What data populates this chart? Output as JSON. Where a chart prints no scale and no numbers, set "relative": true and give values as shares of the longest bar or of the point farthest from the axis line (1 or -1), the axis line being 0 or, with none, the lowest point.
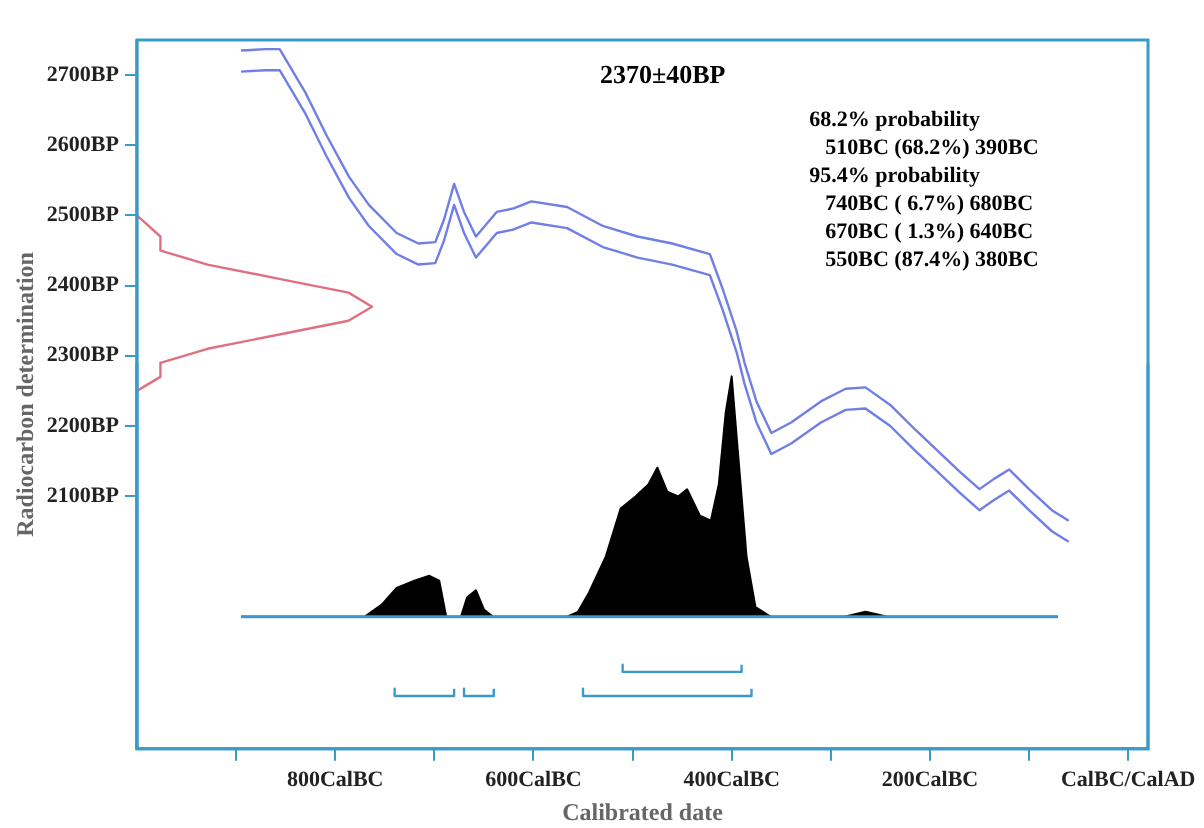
{
  "chart_data": [
    {
      "type": "line",
      "title": "2370±40BP",
      "xlabel": "Calibrated date",
      "ylabel": "Radiocarbon determination",
      "xlim": [
        -1000,
        20
      ],
      "xticks": [
        {
          "value": -900,
          "label": null
        },
        {
          "value": -800,
          "label": "800CalBC"
        },
        {
          "value": -700,
          "label": null
        },
        {
          "value": -600,
          "label": "600CalBC"
        },
        {
          "value": -500,
          "label": null
        },
        {
          "value": -400,
          "label": "400CalBC"
        },
        {
          "value": -300,
          "label": null
        },
        {
          "value": -200,
          "label": "200CalBC"
        },
        {
          "value": -100,
          "label": null
        },
        {
          "value": 0,
          "label": "CalBC/CalAD"
        }
      ],
      "ylim": [
        1740,
        2750
      ],
      "yticks": [
        {
          "value": 2100,
          "label": "2100BP"
        },
        {
          "value": 2200,
          "label": "2200BP"
        },
        {
          "value": 2300,
          "label": "2300BP"
        },
        {
          "value": 2400,
          "label": "2400BP"
        },
        {
          "value": 2500,
          "label": "2500BP"
        },
        {
          "value": 2600,
          "label": "2600BP"
        },
        {
          "value": 2700,
          "label": "2700BP"
        }
      ],
      "grid": false,
      "legend": false,
      "marker": "none",
      "series": [
        {
          "color": "#6f7fe6",
          "x": [
            -895,
            -870,
            -856,
            -830,
            -809,
            -786,
            -766,
            -738,
            -716,
            -699,
            -690,
            -680,
            -670,
            -658,
            -637,
            -620,
            -602,
            -566,
            -530,
            -495,
            -460,
            -422,
            -409,
            -395,
            -387,
            -375,
            -360,
            -340,
            -310,
            -285,
            -265,
            -240,
            -215,
            -194,
            -170,
            -150,
            -135,
            -120,
            -100,
            -77,
            -60
          ],
          "values": [
            2735,
            2737,
            2737,
            2675,
            2615,
            2555,
            2515,
            2475,
            2460,
            2462,
            2495,
            2545,
            2505,
            2470,
            2505,
            2510,
            2520,
            2512,
            2485,
            2470,
            2460,
            2445,
            2395,
            2335,
            2290,
            2235,
            2190,
            2205,
            2235,
            2253,
            2255,
            2230,
            2195,
            2167,
            2135,
            2110,
            2125,
            2138,
            2110,
            2080,
            2065
          ]
        },
        {
          "color": "#6f7fe6",
          "x": [
            -895,
            -870,
            -856,
            -830,
            -809,
            -786,
            -766,
            -738,
            -716,
            -699,
            -690,
            -680,
            -670,
            -658,
            -637,
            -620,
            -602,
            -566,
            -530,
            -495,
            -460,
            -422,
            -409,
            -395,
            -387,
            -375,
            -360,
            -340,
            -310,
            -285,
            -265,
            -240,
            -215,
            -194,
            -170,
            -150,
            -135,
            -120,
            -100,
            -77,
            -60
          ],
          "values": [
            2705,
            2707,
            2707,
            2645,
            2585,
            2525,
            2485,
            2445,
            2430,
            2432,
            2465,
            2515,
            2475,
            2440,
            2475,
            2480,
            2490,
            2482,
            2455,
            2440,
            2430,
            2415,
            2365,
            2305,
            2260,
            2205,
            2160,
            2175,
            2205,
            2223,
            2225,
            2200,
            2165,
            2137,
            2105,
            2080,
            2095,
            2108,
            2080,
            2050,
            2035
          ]
        }
      ],
      "annotations": [
        "68.2% probability",
        "510BC (68.2%) 390BC",
        "95.4% probability",
        "740BC ( 6.7%) 680BC",
        "670BC ( 1.3%) 640BC",
        "550BC (87.4%) 380BC"
      ]
    },
    {
      "type": "area",
      "relative": true,
      "tick_labels": false,
      "xlim": [
        -1000,
        20
      ],
      "series": [
        {
          "color": "#000000",
          "x": [
            -895,
            -770,
            -753,
            -738,
            -720,
            -705,
            -695,
            -688,
            -673,
            -667,
            -658,
            -650,
            -641,
            -566,
            -555,
            -544,
            -527,
            -512,
            -497,
            -484,
            -475,
            -465,
            -454,
            -445,
            -432,
            -421,
            -413,
            -406,
            -400,
            -394,
            -385,
            -376,
            -361,
            -286,
            -265,
            -243,
            -71
          ],
          "values": [
            0,
            0,
            0.05,
            0.12,
            0.15,
            0.17,
            0.15,
            0,
            0,
            0.08,
            0.11,
            0.03,
            0,
            0,
            0.02,
            0.1,
            0.25,
            0.45,
            0.5,
            0.55,
            0.62,
            0.52,
            0.5,
            0.53,
            0.42,
            0.4,
            0.55,
            0.85,
            1,
            0.7,
            0.25,
            0.04,
            0,
            0,
            0.02,
            0,
            0
          ]
        },
        {
          "type": "line",
          "color": "#3a9ac8",
          "x": [
            -510,
            -510,
            -390,
            -390
          ],
          "values": [
            -0.2,
            -0.23,
            -0.23,
            -0.2
          ]
        },
        {
          "type": "line",
          "color": "#3a9ac8",
          "x": [
            -740,
            -740,
            -680,
            -680
          ],
          "values": [
            -0.3,
            -0.33,
            -0.33,
            -0.3
          ]
        },
        {
          "type": "line",
          "color": "#3a9ac8",
          "x": [
            -670,
            -670,
            -640,
            -640
          ],
          "values": [
            -0.3,
            -0.33,
            -0.33,
            -0.3
          ]
        },
        {
          "type": "line",
          "color": "#3a9ac8",
          "x": [
            -550,
            -550,
            -380,
            -380
          ],
          "values": [
            -0.3,
            -0.33,
            -0.33,
            -0.3
          ]
        }
      ]
    },
    {
      "type": "line",
      "orientation": "horizontal",
      "relative": true,
      "tick_labels": false,
      "ylim": [
        1740,
        2750
      ],
      "series": [
        {
          "color": "#e07080",
          "x": [
            2500,
            2470,
            2450,
            2430,
            2410,
            2390,
            2370,
            2350,
            2330,
            2310,
            2290,
            2270,
            2250
          ],
          "values": [
            0,
            0.1,
            0.1,
            0.3,
            0.6,
            0.9,
            1,
            0.9,
            0.6,
            0.3,
            0.1,
            0.1,
            0
          ]
        }
      ]
    }
  ]
}
